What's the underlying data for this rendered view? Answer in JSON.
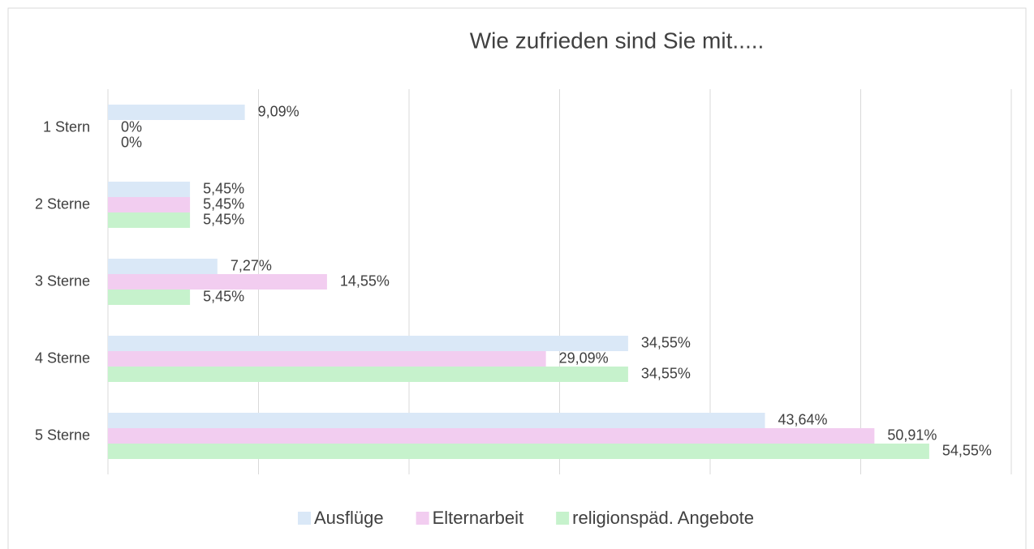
{
  "chart_data": {
    "type": "hbar",
    "title": "Wie zufrieden sind Sie mit.....",
    "categories": [
      "1 Stern",
      "2 Sterne",
      "3 Sterne",
      "4 Sterne",
      "5 Sterne"
    ],
    "series": [
      {
        "name": "Ausflüge",
        "color": "#dae8f7",
        "values": [
          9.09,
          5.45,
          7.27,
          34.55,
          43.64
        ],
        "value_labels": [
          "9,09%",
          "5,45%",
          "7,27%",
          "34,55%",
          "43,64%"
        ]
      },
      {
        "name": "Elternarbeit",
        "color": "#f2cdf0",
        "values": [
          0,
          5.45,
          14.55,
          29.09,
          50.91
        ],
        "value_labels": [
          "0%",
          "5,45%",
          "14,55%",
          "29,09%",
          "50,91%"
        ]
      },
      {
        "name": "religionspäd. Angebote",
        "color": "#c6f2cc",
        "values": [
          0,
          5.45,
          5.45,
          34.55,
          54.55
        ],
        "value_labels": [
          "0%",
          "5,45%",
          "5,45%",
          "34,55%",
          "54,55%"
        ]
      }
    ],
    "xlim": [
      0,
      60
    ],
    "xticks": [
      0,
      10,
      20,
      30,
      40,
      50,
      60
    ],
    "grid": true,
    "legend": "bottom"
  }
}
